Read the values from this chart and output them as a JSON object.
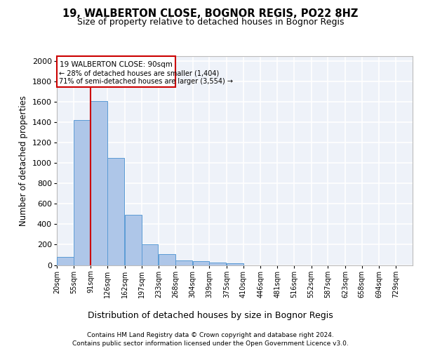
{
  "title_line1": "19, WALBERTON CLOSE, BOGNOR REGIS, PO22 8HZ",
  "title_line2": "Size of property relative to detached houses in Bognor Regis",
  "xlabel": "Distribution of detached houses by size in Bognor Regis",
  "ylabel": "Number of detached properties",
  "footer_line1": "Contains HM Land Registry data © Crown copyright and database right 2024.",
  "footer_line2": "Contains public sector information licensed under the Open Government Licence v3.0.",
  "annotation_title": "19 WALBERTON CLOSE: 90sqm",
  "annotation_line1": "← 28% of detached houses are smaller (1,404)",
  "annotation_line2": "71% of semi-detached houses are larger (3,554) →",
  "bar_color": "#aec6e8",
  "bar_edge_color": "#5b9bd5",
  "marker_color": "#cc0000",
  "categories": [
    "20sqm",
    "55sqm",
    "91sqm",
    "126sqm",
    "162sqm",
    "197sqm",
    "233sqm",
    "268sqm",
    "304sqm",
    "339sqm",
    "375sqm",
    "410sqm",
    "446sqm",
    "481sqm",
    "516sqm",
    "552sqm",
    "587sqm",
    "623sqm",
    "658sqm",
    "694sqm",
    "729sqm"
  ],
  "bin_edges": [
    20,
    55,
    91,
    126,
    162,
    197,
    233,
    268,
    304,
    339,
    375,
    410,
    446,
    481,
    516,
    552,
    587,
    623,
    658,
    694,
    729
  ],
  "bin_width": 35,
  "values": [
    80,
    1420,
    1610,
    1050,
    490,
    205,
    105,
    48,
    35,
    22,
    18,
    0,
    0,
    0,
    0,
    0,
    0,
    0,
    0,
    0,
    0
  ],
  "ylim": [
    0,
    2050
  ],
  "yticks": [
    0,
    200,
    400,
    600,
    800,
    1000,
    1200,
    1400,
    1600,
    1800,
    2000
  ],
  "bg_color": "#eef2f9",
  "grid_color": "#ffffff",
  "annotation_box_color": "#ffffff",
  "annotation_box_edge": "#cc0000",
  "fig_bg": "#ffffff"
}
